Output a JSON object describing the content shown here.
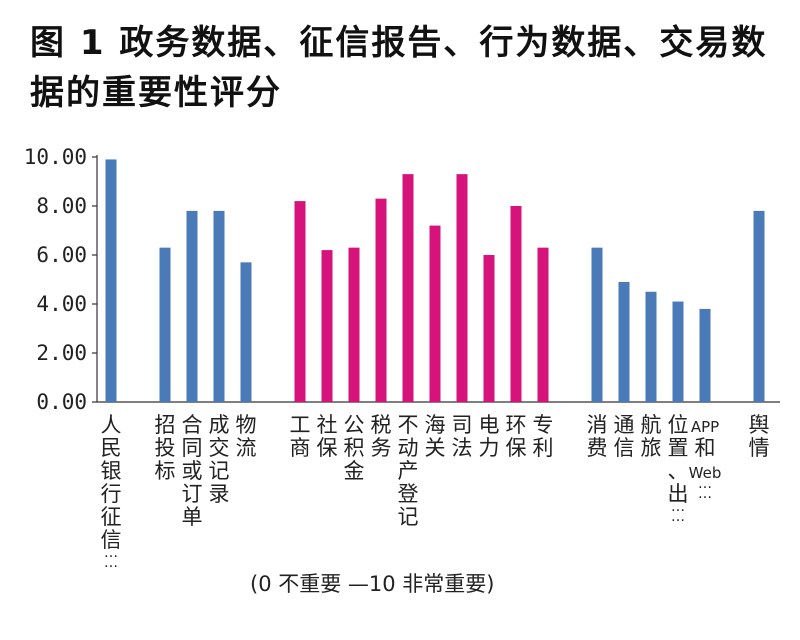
{
  "title": "图 1  政务数据、征信报告、行为数据、交易数据的重要性评分",
  "note": "(0 不重要 —10 非常重要)",
  "colors": {
    "blue": "#4a7ab8",
    "magenta": "#d6137a",
    "axis": "#333333"
  },
  "chart_data": {
    "type": "bar",
    "title": "图 1  政务数据、征信报告、行为数据、交易数据的重要性评分",
    "ylim": [
      0,
      10
    ],
    "y_ticks": [
      "0.00",
      "2.00",
      "4.00",
      "6.00",
      "8.00",
      "10.00"
    ],
    "grid": false,
    "legend": "none",
    "categories": [
      "人民银行征信……",
      "招投标",
      "合同或订单",
      "成交记录",
      "物流",
      "工商",
      "社保",
      "公积金",
      "税务",
      "不动产登记",
      "海关",
      "司法",
      "电力",
      "环保",
      "专利",
      "消费",
      "通信",
      "航旅",
      "位置、出……",
      "APP和Web……",
      "舆情"
    ],
    "values": [
      9.9,
      6.3,
      7.8,
      7.8,
      5.7,
      8.2,
      6.2,
      6.3,
      8.3,
      9.3,
      7.2,
      9.3,
      6.0,
      8.0,
      6.3,
      6.3,
      4.9,
      4.5,
      4.1,
      3.8,
      7.8
    ],
    "bar_colors": [
      "blue",
      "blue",
      "blue",
      "blue",
      "blue",
      "magenta",
      "magenta",
      "magenta",
      "magenta",
      "magenta",
      "magenta",
      "magenta",
      "magenta",
      "magenta",
      "magenta",
      "blue",
      "blue",
      "blue",
      "blue",
      "blue",
      "blue"
    ]
  }
}
